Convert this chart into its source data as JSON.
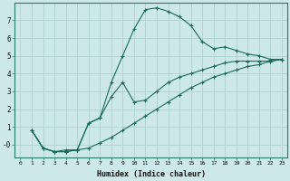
{
  "xlabel": "Humidex (Indice chaleur)",
  "bg_color": "#cde8e8",
  "grid_color": "#aacccc",
  "line_color": "#1a6b5a",
  "markersize": 3,
  "linewidth": 0.8,
  "xlim": [
    -0.5,
    23.5
  ],
  "ylim": [
    -0.7,
    8.0
  ],
  "yticks": [
    0,
    1,
    2,
    3,
    4,
    5,
    6,
    7
  ],
  "ytick_labels": [
    "-0",
    "1",
    "2",
    "3",
    "4",
    "5",
    "6",
    "7"
  ],
  "xticks": [
    0,
    1,
    2,
    3,
    4,
    5,
    6,
    7,
    8,
    9,
    10,
    11,
    12,
    13,
    14,
    15,
    16,
    17,
    18,
    19,
    20,
    21,
    22,
    23
  ],
  "line1_x": [
    1,
    2,
    3,
    4,
    5,
    6,
    7,
    8,
    9,
    10,
    11,
    12,
    13,
    14,
    15,
    16,
    17,
    18,
    19,
    20,
    21,
    22,
    23
  ],
  "line1_y": [
    0.8,
    -0.2,
    -0.4,
    -0.3,
    -0.3,
    1.2,
    1.5,
    3.5,
    5.0,
    6.5,
    7.6,
    7.7,
    7.5,
    7.2,
    6.7,
    5.8,
    5.4,
    5.5,
    5.3,
    5.1,
    5.0,
    4.8,
    4.8
  ],
  "line2_x": [
    1,
    2,
    3,
    4,
    5,
    6,
    7,
    8,
    9,
    10,
    11,
    12,
    13,
    14,
    15,
    16,
    17,
    18,
    19,
    20,
    21,
    22,
    23
  ],
  "line2_y": [
    0.8,
    -0.2,
    -0.4,
    -0.4,
    -0.3,
    -0.2,
    0.1,
    0.4,
    0.8,
    1.2,
    1.6,
    2.0,
    2.4,
    2.8,
    3.2,
    3.5,
    3.8,
    4.0,
    4.2,
    4.4,
    4.5,
    4.7,
    4.8
  ],
  "line3_x": [
    1,
    2,
    3,
    4,
    5,
    6,
    7,
    8,
    9,
    10,
    11,
    12,
    13,
    14,
    15,
    16,
    17,
    18,
    19,
    20,
    21,
    22,
    23
  ],
  "line3_y": [
    0.8,
    -0.2,
    -0.4,
    -0.4,
    -0.3,
    1.2,
    1.5,
    2.7,
    3.5,
    2.4,
    2.5,
    3.0,
    3.5,
    3.8,
    4.0,
    4.2,
    4.4,
    4.6,
    4.7,
    4.7,
    4.7,
    4.7,
    4.8
  ]
}
